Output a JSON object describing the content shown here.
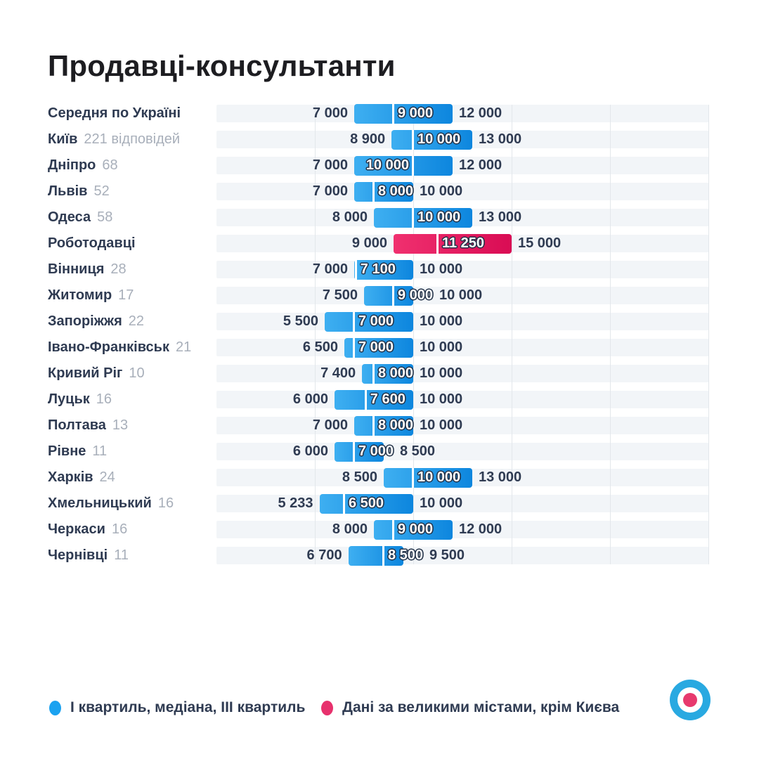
{
  "title": "Продавці-консультанти",
  "colors": {
    "blue_bar_start": "#3eaff1",
    "blue_bar_end": "#0d86de",
    "pink_bar_start": "#f0306f",
    "pink_bar_end": "#d90c54",
    "band_background": "#f2f5f8",
    "gridline": "#e3e7eb",
    "text_dark": "#2f3b52",
    "count_gray": "#a8afba",
    "median_label_fill": "#ffffff",
    "median_label_outline": "#243349"
  },
  "legend": {
    "items": [
      {
        "label": "І квартиль, медіана, ІІІ квартиль",
        "color": "#1ba2f0"
      },
      {
        "label": "Дані за великими містами, крім Києва",
        "color": "#e7316d"
      }
    ]
  },
  "logo": {
    "outer": "#29a9e1",
    "inner": "#ffffff",
    "center": "#e73a6e"
  },
  "chart_data": {
    "type": "bar",
    "subtype": "range (Q1 — median — Q3), horizontal",
    "title": "Продавці-консультанти",
    "axis": {
      "min": 0,
      "max": 25036,
      "gridlines": [
        5000,
        10000,
        15000,
        20000,
        25000
      ],
      "grid": true
    },
    "legend_position": "bottom",
    "rows": [
      {
        "label": "Середня по Україні",
        "count_text": "",
        "q1": 7000,
        "median": 9000,
        "q3": 12000,
        "variant": "city",
        "median_label_side": "right"
      },
      {
        "label": "Київ",
        "count_text": "221 відповідей",
        "q1": 8900,
        "median": 10000,
        "q3": 13000,
        "variant": "city",
        "median_label_side": "right"
      },
      {
        "label": "Дніпро",
        "count_text": "68",
        "q1": 7000,
        "median": 10000,
        "q3": 12000,
        "variant": "city",
        "median_label_side": "left"
      },
      {
        "label": "Львів",
        "count_text": "52",
        "q1": 7000,
        "median": 8000,
        "q3": 10000,
        "variant": "city",
        "median_label_side": "right"
      },
      {
        "label": "Одеса",
        "count_text": "58",
        "q1": 8000,
        "median": 10000,
        "q3": 13000,
        "variant": "city",
        "median_label_side": "right"
      },
      {
        "label": "Роботодавці",
        "count_text": "",
        "q1": 9000,
        "median": 11250,
        "q3": 15000,
        "variant": "employers",
        "median_label_side": "right"
      },
      {
        "label": "Вінниця",
        "count_text": "28",
        "q1": 7000,
        "median": 7100,
        "q3": 10000,
        "variant": "city",
        "median_label_side": "right"
      },
      {
        "label": "Житомир",
        "count_text": "17",
        "q1": 7500,
        "median": 9000,
        "q3": 10000,
        "variant": "city",
        "median_label_side": "right"
      },
      {
        "label": "Запоріжжя",
        "count_text": "22",
        "q1": 5500,
        "median": 7000,
        "q3": 10000,
        "variant": "city",
        "median_label_side": "right"
      },
      {
        "label": "Івано-Франківськ",
        "count_text": "21",
        "q1": 6500,
        "median": 7000,
        "q3": 10000,
        "variant": "city",
        "median_label_side": "right"
      },
      {
        "label": "Кривий Ріг",
        "count_text": "10",
        "q1": 7400,
        "median": 8000,
        "q3": 10000,
        "variant": "city",
        "median_label_side": "right"
      },
      {
        "label": "Луцьк",
        "count_text": "16",
        "q1": 6000,
        "median": 7600,
        "q3": 10000,
        "variant": "city",
        "median_label_side": "right"
      },
      {
        "label": "Полтава",
        "count_text": "13",
        "q1": 7000,
        "median": 8000,
        "q3": 10000,
        "variant": "city",
        "median_label_side": "right"
      },
      {
        "label": "Рівне",
        "count_text": "11",
        "q1": 6000,
        "median": 7000,
        "q3": 8500,
        "variant": "city",
        "median_label_side": "right"
      },
      {
        "label": "Харків",
        "count_text": "24",
        "q1": 8500,
        "median": 10000,
        "q3": 13000,
        "variant": "city",
        "median_label_side": "right"
      },
      {
        "label": "Хмельницький",
        "count_text": "16",
        "q1": 5233,
        "median": 6500,
        "q3": 10000,
        "variant": "city",
        "median_label_side": "right"
      },
      {
        "label": "Черкаси",
        "count_text": "16",
        "q1": 8000,
        "median": 9000,
        "q3": 12000,
        "variant": "city",
        "median_label_side": "right"
      },
      {
        "label": "Чернівці",
        "count_text": "11",
        "q1": 6700,
        "median": 8500,
        "q3": 9500,
        "variant": "city",
        "median_label_side": "right"
      }
    ]
  }
}
